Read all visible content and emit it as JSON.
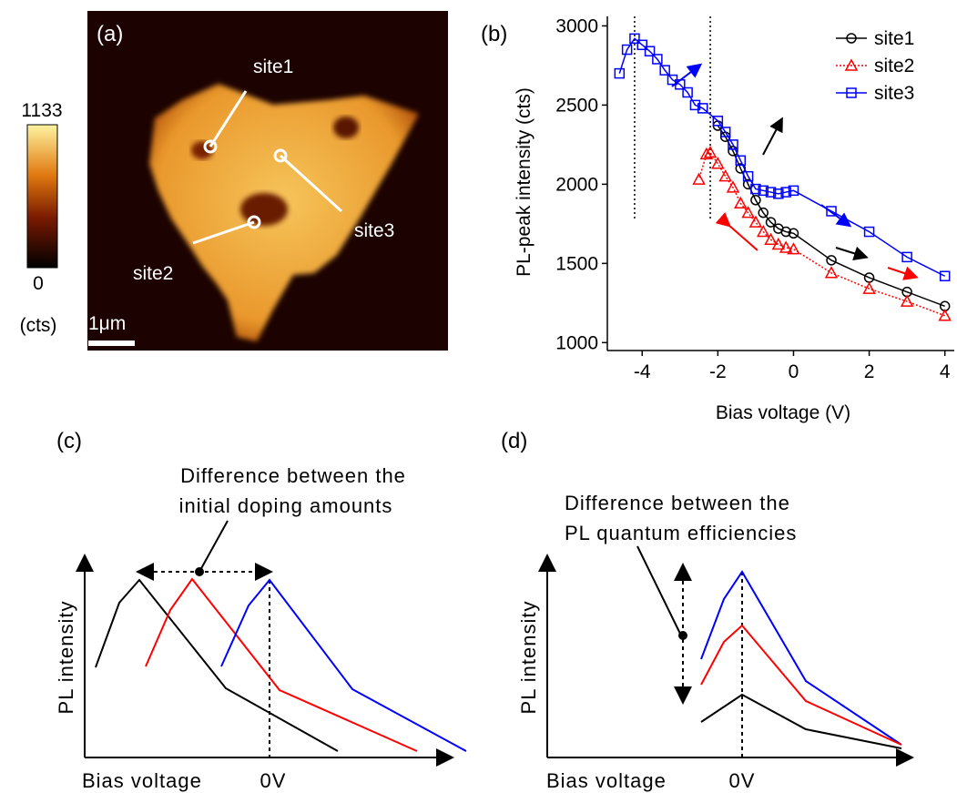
{
  "panel_a": {
    "label": "(a)",
    "colorbar": {
      "max": 1133,
      "min": 0,
      "unit": "(cts)"
    },
    "scale_bar": "1μm",
    "sites": [
      "site1",
      "site3",
      "site2"
    ]
  },
  "chart_data": {
    "type": "line",
    "label": "(b)",
    "x_label": "Bias voltage (V)",
    "y_label": "PL-peak intensity (cts)",
    "xlim": [
      -4.8,
      4.2
    ],
    "xticks": [
      -4,
      -2,
      0,
      2,
      4
    ],
    "ylim": [
      950,
      3060
    ],
    "yticks": [
      1000,
      1500,
      2000,
      2500,
      3000
    ],
    "vlines": [
      -4.2,
      -2.2
    ],
    "legend": "top-right",
    "series": [
      {
        "name": "site1",
        "color": "#000000",
        "marker": "circle",
        "dashed": false,
        "x": [
          4,
          3,
          2,
          1,
          0,
          -0.2,
          -0.4,
          -0.6,
          -0.8,
          -1,
          -1.2,
          -1.4,
          -1.6,
          -1.8,
          -2
        ],
        "values": [
          1230,
          1320,
          1410,
          1520,
          1690,
          1700,
          1720,
          1760,
          1820,
          1900,
          2000,
          2100,
          2210,
          2300,
          2370
        ]
      },
      {
        "name": "site2",
        "color": "#ff0000",
        "marker": "triangle",
        "dashed": true,
        "x": [
          4,
          3,
          2,
          1,
          0,
          -0.2,
          -0.4,
          -0.6,
          -0.8,
          -1,
          -1.2,
          -1.4,
          -1.6,
          -1.8,
          -2,
          -2.2,
          -2.3,
          -2.5
        ],
        "values": [
          1170,
          1260,
          1340,
          1440,
          1590,
          1600,
          1620,
          1650,
          1700,
          1760,
          1820,
          1880,
          1980,
          2050,
          2130,
          2200,
          2190,
          2030
        ]
      },
      {
        "name": "site3",
        "color": "#0000ff",
        "marker": "square",
        "dashed": false,
        "x": [
          4,
          3,
          2,
          1,
          0,
          -0.2,
          -0.4,
          -0.6,
          -0.8,
          -1,
          -1.2,
          -1.4,
          -1.6,
          -1.8,
          -2,
          -2.4,
          -2.6,
          -2.8,
          -3,
          -3.2,
          -3.4,
          -3.6,
          -3.8,
          -4,
          -4.2,
          -4.4,
          -4.6
        ],
        "values": [
          1420,
          1540,
          1700,
          1830,
          1960,
          1950,
          1940,
          1950,
          1960,
          1970,
          2050,
          2150,
          2250,
          2330,
          2400,
          2480,
          2500,
          2580,
          2630,
          2660,
          2720,
          2790,
          2840,
          2880,
          2920,
          2850,
          2700
        ]
      }
    ]
  },
  "panel_c": {
    "label": "(c)",
    "note": [
      "Difference between the",
      "initial doping amounts"
    ],
    "y_label": "PL intensity",
    "x_label": "Bias voltage",
    "zero": "0V"
  },
  "panel_d": {
    "label": "(d)",
    "note": [
      "Difference between the",
      "PL quantum efficiencies"
    ],
    "y_label": "PL intensity",
    "x_label": "Bias voltage",
    "zero": "0V"
  }
}
